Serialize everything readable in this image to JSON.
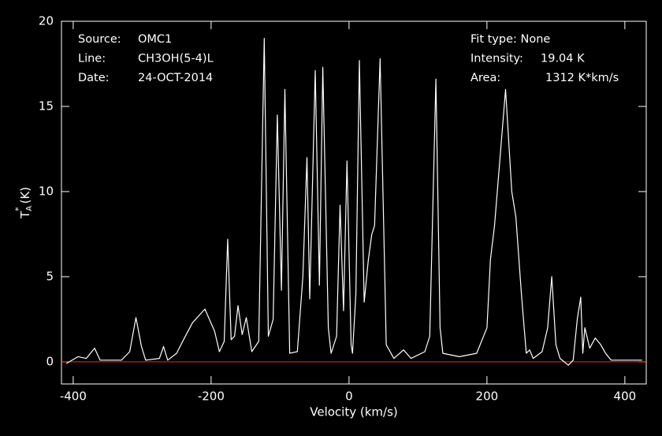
{
  "chart_data": {
    "type": "line",
    "xlabel": "Velocity (km/s)",
    "ylabel": {
      "base": "T",
      "sub": "A",
      "sup": "*",
      "unit": "(K)"
    },
    "annotations": {
      "left": [
        [
          "Source:",
          "OMC1"
        ],
        [
          "Line:",
          "CH3OH(5-4)L"
        ],
        [
          "Date:",
          "24-OCT-2014"
        ]
      ],
      "right": [
        [
          "Fit type: None"
        ],
        [
          "Intensity:",
          "19.04 K"
        ],
        [
          "Area:",
          "1312 K*km/s"
        ]
      ]
    },
    "xlim": [
      -417,
      431
    ],
    "ylim": [
      -1.3,
      20
    ],
    "xticks": [
      -400,
      -200,
      0,
      200,
      400
    ],
    "yticks": [
      0,
      5,
      10,
      15,
      20
    ],
    "baseline": 0,
    "baseline_color": "#ff2020",
    "series": [
      {
        "color": "#ffffff",
        "x": [
          -410,
          -393,
          -381,
          -369,
          -361,
          -330,
          -318,
          -309,
          -301,
          -295,
          -275,
          -269,
          -263,
          -250,
          -240,
          -227,
          -209,
          -195,
          -188,
          -181,
          -176,
          -171,
          -166,
          -161,
          -155,
          -149,
          -141,
          -131,
          -123,
          -117,
          -110,
          -104,
          -98,
          -93,
          -86,
          -75,
          -67,
          -61,
          -57,
          -49,
          -43,
          -38,
          -30,
          -26,
          -18,
          -13,
          -8,
          -3,
          3,
          5,
          10,
          15,
          22,
          28,
          33,
          37,
          45,
          54,
          65,
          79,
          90,
          110,
          117,
          126,
          132,
          136,
          160,
          185,
          200,
          205,
          211,
          219,
          227,
          236,
          242,
          250,
          254,
          257,
          262,
          267,
          280,
          288,
          294,
          300,
          306,
          318,
          325,
          331,
          336,
          339,
          342,
          349,
          357,
          365,
          372,
          380,
          400,
          425
        ],
        "values": [
          -0.1,
          0.3,
          0.2,
          0.8,
          0.1,
          0.1,
          0.6,
          2.6,
          0.9,
          0.1,
          0.2,
          0.9,
          0.1,
          0.5,
          1.3,
          2.3,
          3.1,
          1.8,
          0.6,
          1.2,
          7.2,
          1.3,
          1.5,
          3.3,
          1.6,
          2.6,
          0.6,
          1.2,
          19,
          1.5,
          2.5,
          14.5,
          4.2,
          16,
          0.5,
          0.6,
          5,
          12,
          3.7,
          17.1,
          4.5,
          17.3,
          2,
          0.5,
          1.5,
          9.2,
          3,
          11.8,
          1,
          0.5,
          4,
          17.7,
          3.5,
          6,
          7.5,
          8,
          17.8,
          1,
          0.2,
          0.7,
          0.2,
          0.6,
          1.5,
          16.6,
          2,
          0.5,
          0.3,
          0.5,
          2,
          6,
          8,
          12,
          16,
          10,
          8.5,
          4,
          2,
          0.5,
          0.7,
          0.2,
          0.6,
          2,
          5,
          1,
          0.2,
          -0.2,
          0.1,
          2.5,
          3.8,
          0.5,
          2,
          0.8,
          1.4,
          1,
          0.5,
          0.1,
          0.1,
          0.1
        ]
      }
    ]
  }
}
